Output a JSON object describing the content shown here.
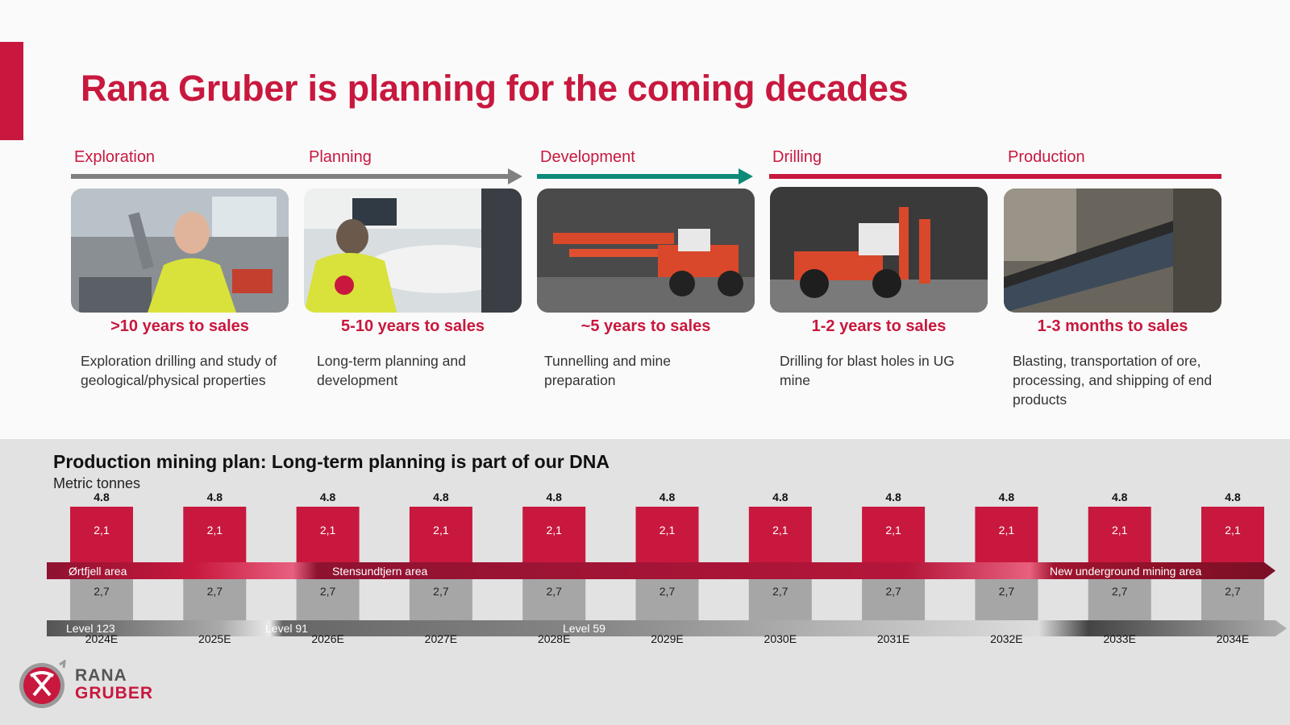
{
  "title": "Rana Gruber is planning for the coming decades",
  "colors": {
    "brand_red": "#c8183e",
    "gray_arrow": "#808080",
    "teal_arrow": "#0e8a78",
    "segment_gray": "#a6a6a6"
  },
  "phases": [
    {
      "label": "Exploration",
      "time": ">10 years to sales",
      "desc": "Exploration drilling and study of geological/physical properties"
    },
    {
      "label": "Planning",
      "time": "5-10 years to sales",
      "desc": "Long-term planning and development"
    },
    {
      "label": "Development",
      "time": "~5 years to sales",
      "desc": "Tunnelling and mine preparation"
    },
    {
      "label": "Drilling",
      "time": "1-2 years to sales",
      "desc": "Drilling for blast holes in UG mine"
    },
    {
      "label": "Production",
      "time": "1-3 months to sales",
      "desc": "Blasting, transportation of ore, processing, and shipping of end products"
    }
  ],
  "chart_data": {
    "type": "bar",
    "title": "Production mining plan: Long-term planning is part of our DNA",
    "ylabel": "Metric tonnes",
    "categories": [
      "2024E",
      "2025E",
      "2026E",
      "2027E",
      "2028E",
      "2029E",
      "2030E",
      "2031E",
      "2032E",
      "2033E",
      "2034E"
    ],
    "totals": [
      "4.8",
      "4.8",
      "4.8",
      "4.8",
      "4.8",
      "4.8",
      "4.8",
      "4.8",
      "4.8",
      "4.8",
      "4.8"
    ],
    "series": [
      {
        "values": [
          2.1,
          2.1,
          2.1,
          2.1,
          2.1,
          2.1,
          2.1,
          2.1,
          2.1,
          2.1,
          2.1
        ],
        "value_labels": [
          "2,1",
          "2,1",
          "2,1",
          "2,1",
          "2,1",
          "2,1",
          "2,1",
          "2,1",
          "2,1",
          "2,1",
          "2,1"
        ],
        "color": "#c8183e"
      },
      {
        "values": [
          2.7,
          2.7,
          2.7,
          2.7,
          2.7,
          2.7,
          2.7,
          2.7,
          2.7,
          2.7,
          2.7
        ],
        "value_labels": [
          "2,7",
          "2,7",
          "2,7",
          "2,7",
          "2,7",
          "2,7",
          "2,7",
          "2,7",
          "2,7",
          "2,7",
          "2,7"
        ],
        "color": "#a6a6a6"
      }
    ],
    "area_labels": [
      "Ørtfjell area",
      "Stensundtjern area",
      "New underground mining area"
    ],
    "level_labels": [
      "Level 123",
      "Level 91",
      "Level 59"
    ]
  },
  "logo": {
    "line1": "RANA",
    "line2": "GRUBER"
  },
  "icons": [
    "pickaxe-logo-icon"
  ]
}
